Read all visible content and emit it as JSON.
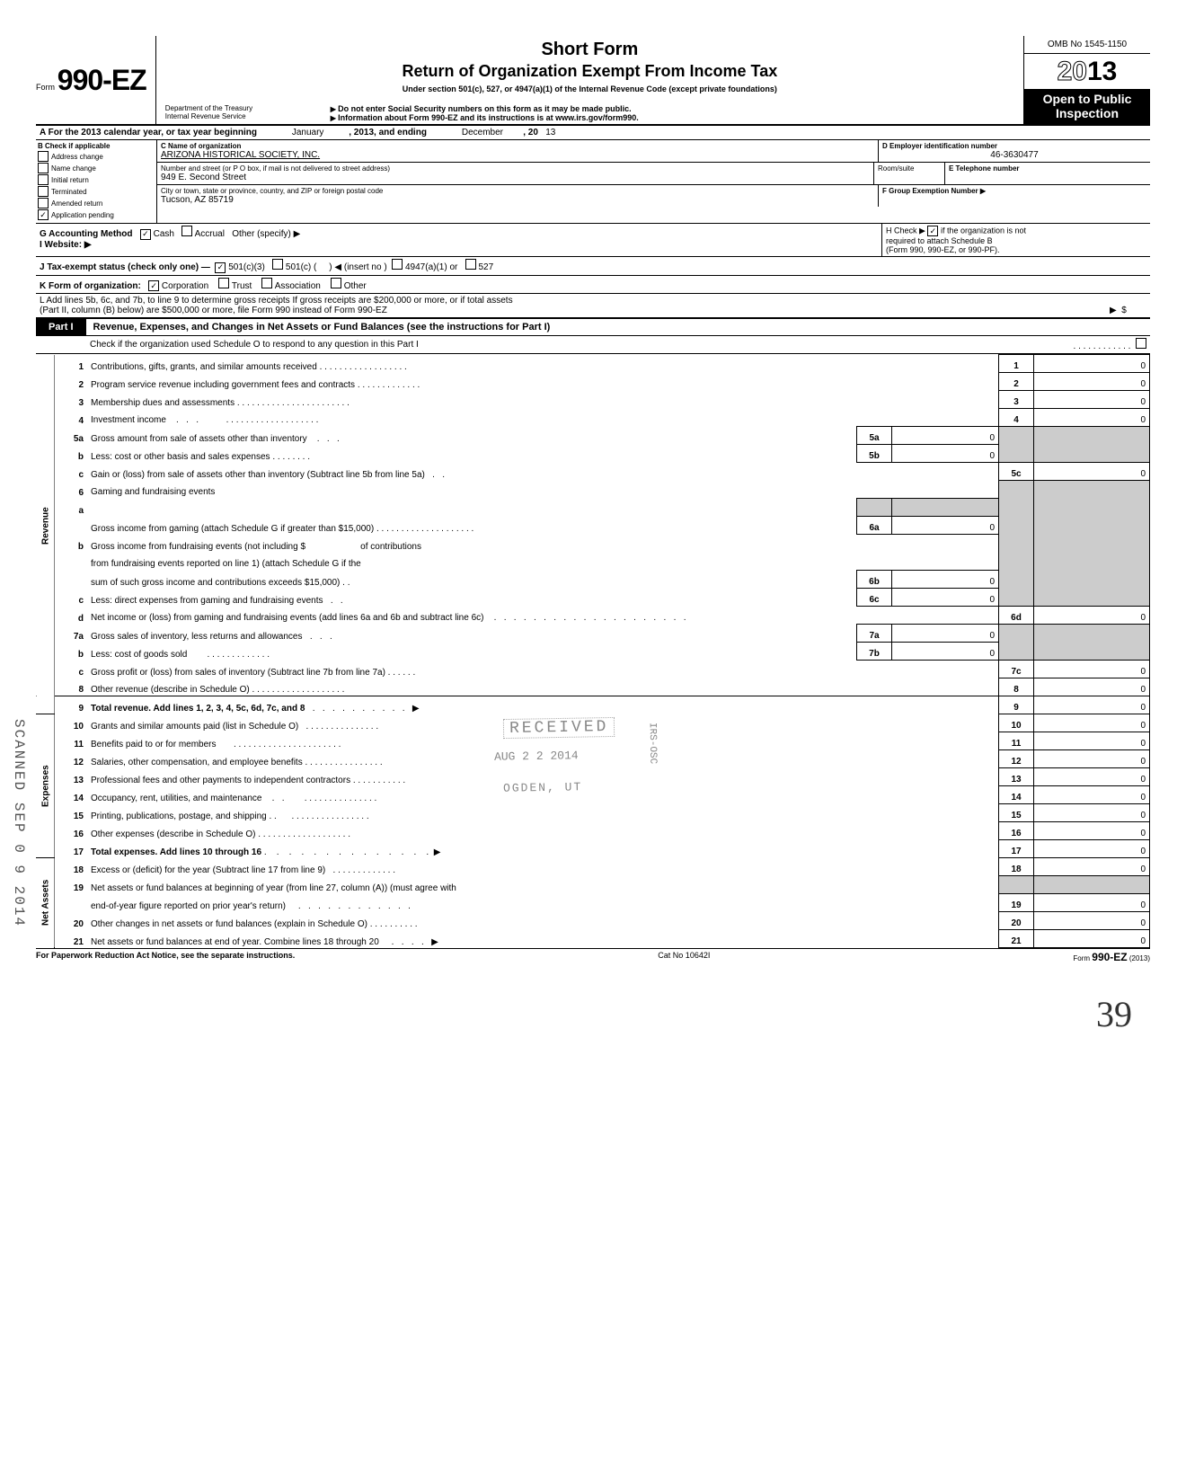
{
  "header": {
    "form_prefix": "Form",
    "form_number": "990-EZ",
    "title1": "Short Form",
    "title2": "Return of Organization Exempt From Income Tax",
    "subtitle": "Under section 501(c), 527, or 4947(a)(1) of the Internal Revenue Code (except private foundations)",
    "warn1": "Do not enter Social Security numbers on this form as it may be made public.",
    "warn2": "Information about Form 990-EZ and its instructions is at www.irs.gov/form990.",
    "omb": "OMB No 1545-1150",
    "year_outline": "20",
    "year_bold": "13",
    "open_public": "Open to Public Inspection",
    "dept": "Department of the Treasury\nInternal Revenue Service"
  },
  "rowA": {
    "label": "A For the 2013 calendar year, or tax year beginning",
    "begin": "January",
    "mid": ", 2013, and ending",
    "end": "December",
    "year_suffix": ", 20",
    "year_val": "13"
  },
  "colB": {
    "label": "B Check if applicable",
    "items": [
      {
        "label": "Address change",
        "checked": false
      },
      {
        "label": "Name change",
        "checked": false
      },
      {
        "label": "Initial return",
        "checked": false
      },
      {
        "label": "Terminated",
        "checked": false
      },
      {
        "label": "Amended return",
        "checked": false
      },
      {
        "label": "Application pending",
        "checked": true
      }
    ]
  },
  "cde": {
    "c_label": "C Name of organization",
    "c_value": "ARIZONA HISTORICAL SOCIETY, INC.",
    "addr_label": "Number and street (or P O box, if mail is not delivered to street address)",
    "addr_value": "949 E. Second Street",
    "room_label": "Room/suite",
    "city_label": "City or town, state or province, country, and ZIP or foreign postal code",
    "city_value": "Tucson, AZ  85719",
    "d_label": "D Employer identification number",
    "d_value": "46-3630477",
    "e_label": "E Telephone number",
    "f_label": "F Group Exemption Number ▶"
  },
  "rowG": {
    "label": "G Accounting Method",
    "cash": "Cash",
    "accrual": "Accrual",
    "other": "Other (specify) ▶",
    "cash_checked": true
  },
  "rowI": {
    "label": "I Website: ▶"
  },
  "rowH": {
    "line1": "H Check ▶",
    "line1b": "if the organization is not",
    "line2": "required to attach Schedule B",
    "line3": "(Form 990, 990-EZ, or 990-PF).",
    "checked": true
  },
  "rowJ": {
    "label": "J Tax-exempt status (check only one) —",
    "opt1": "501(c)(3)",
    "opt2": "501(c) (",
    "opt2b": ") ◀ (insert no )",
    "opt3": "4947(a)(1) or",
    "opt4": "527",
    "checked_501c3": true
  },
  "rowK": {
    "label": "K Form of organization:",
    "corp": "Corporation",
    "trust": "Trust",
    "assoc": "Association",
    "other": "Other",
    "corp_checked": true
  },
  "rowL": {
    "line1": "L Add lines 5b, 6c, and 7b, to line 9 to determine gross receipts  If gross receipts are $200,000 or more, or if total assets",
    "line2": "(Part II, column (B) below) are $500,000 or more, file Form 990 instead of Form 990-EZ",
    "arrow": "▶",
    "dollar": "$"
  },
  "part1": {
    "label": "Part I",
    "title": "Revenue, Expenses, and Changes in Net Assets or Fund Balances (see the instructions for Part I)",
    "schedO": "Check if the organization used Schedule O to respond to any question in this Part I"
  },
  "sidebars": {
    "revenue": "Revenue",
    "expenses": "Expenses",
    "netassets": "Net Assets"
  },
  "lines": {
    "l1": "Contributions, gifts, grants, and similar amounts received",
    "l2": "Program service revenue including government fees and contracts",
    "l3": "Membership dues and assessments",
    "l4": "Investment income",
    "l5a": "Gross amount from sale of assets other than inventory",
    "l5b": "Less: cost or other basis and sales expenses",
    "l5c": "Gain or (loss) from sale of assets other than inventory (Subtract line 5b from line 5a)",
    "l6": "Gaming and fundraising events",
    "l6a": "Gross income from gaming (attach Schedule G if greater than $15,000)",
    "l6b1": "Gross income from fundraising events (not including  $",
    "l6b2": "of contributions",
    "l6b3": "from fundraising events reported on line 1) (attach Schedule G if the",
    "l6b4": "sum of such gross income and contributions exceeds $15,000)",
    "l6c": "Less: direct expenses from gaming and fundraising events",
    "l6d": "Net income or (loss) from gaming and fundraising events (add lines 6a and 6b and subtract line 6c)",
    "l7a": "Gross sales of inventory, less returns and allowances",
    "l7b": "Less: cost of goods sold",
    "l7c": "Gross profit or (loss) from sales of inventory (Subtract line 7b from line 7a)",
    "l8": "Other revenue (describe in Schedule O)",
    "l9": "Total revenue. Add lines 1, 2, 3, 4, 5c, 6d, 7c, and 8",
    "l10": "Grants and similar amounts paid (list in Schedule O)",
    "l11": "Benefits paid to or for members",
    "l12": "Salaries, other compensation, and employee benefits",
    "l13": "Professional fees and other payments to independent contractors",
    "l14": "Occupancy, rent, utilities, and maintenance",
    "l15": "Printing, publications, postage, and shipping",
    "l16": "Other expenses (describe in Schedule O)",
    "l17": "Total expenses. Add lines 10 through 16",
    "l18": "Excess or (deficit) for the year (Subtract line 17 from line 9)",
    "l19a": "Net assets or fund balances at beginning of year (from line 27, column (A)) (must agree with",
    "l19b": "end-of-year figure reported on prior year's return)",
    "l20": "Other changes in net assets or fund balances (explain in Schedule O)",
    "l21": "Net assets or fund balances at end of year. Combine lines 18 through 20"
  },
  "vals": {
    "v1": "0",
    "v2": "0",
    "v3": "0",
    "v4": "0",
    "v5a": "0",
    "v5b": "0",
    "v5c": "0",
    "v6a": "0",
    "v6b": "0",
    "v6c": "0",
    "v6d": "0",
    "v7a": "0",
    "v7b": "0",
    "v7c": "0",
    "v8": "0",
    "v9": "0",
    "v10": "0",
    "v11": "0",
    "v12": "0",
    "v13": "0",
    "v14": "0",
    "v15": "0",
    "v16": "0",
    "v17": "0",
    "v18": "0",
    "v19": "0",
    "v20": "0",
    "v21": "0"
  },
  "footer": {
    "left": "For Paperwork Reduction Act Notice, see the separate instructions.",
    "mid": "Cat No 10642I",
    "right": "Form 990-EZ (2013)"
  },
  "stamps": {
    "received": "RECEIVED",
    "date": "AUG 2 2  2014",
    "ogden": "OGDEN, UT",
    "irs": "IRS-OSC",
    "scanned": "SCANNED SEP 0 9 2014",
    "hand": "39"
  }
}
